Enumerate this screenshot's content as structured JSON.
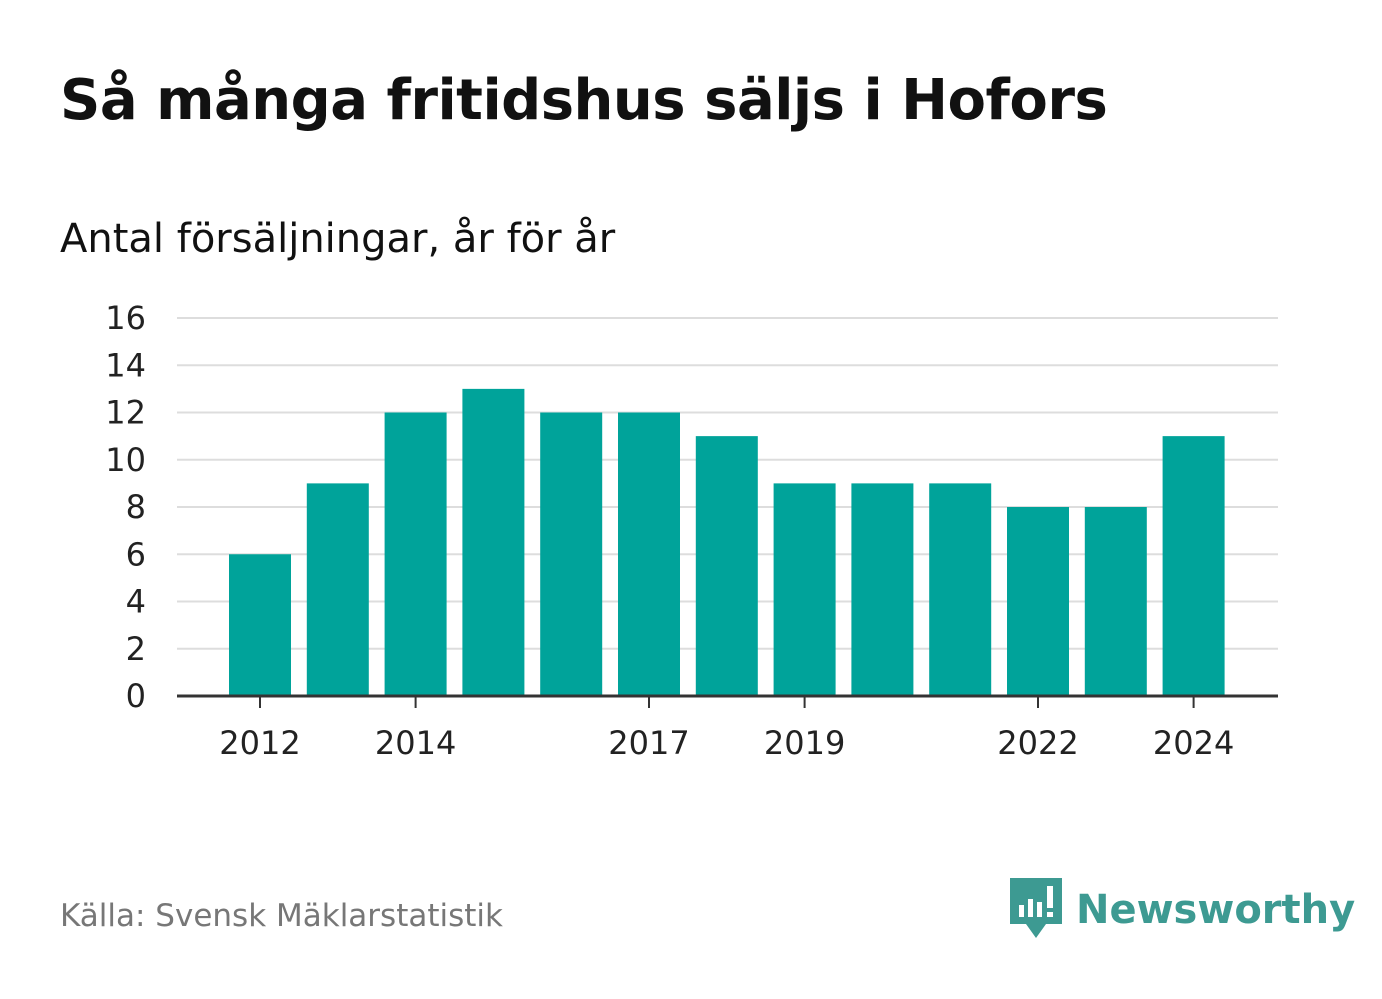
{
  "title": "Så många fritidshus säljs i Hofors",
  "subtitle": "Antal försäljningar, år för år",
  "source": "Källa: Svensk Mäklarstatistik",
  "brand": {
    "name": "Newsworthy",
    "icon": "newsworthy-logo-icon",
    "color": "#3d9a92"
  },
  "colors": {
    "bar": "#00a39a",
    "grid": "#dddddd",
    "axis": "#333333"
  },
  "chart_data": {
    "type": "bar",
    "categories": [
      "2012",
      "2013",
      "2014",
      "2015",
      "2016",
      "2017",
      "2018",
      "2019",
      "2020",
      "2021",
      "2022",
      "2023",
      "2024"
    ],
    "values": [
      6,
      9,
      12,
      13,
      12,
      12,
      11,
      9,
      9,
      9,
      8,
      8,
      11
    ],
    "x_tick_labels": [
      "2012",
      "2014",
      "2017",
      "2019",
      "2022",
      "2024"
    ],
    "y_ticks": [
      0,
      2,
      4,
      6,
      8,
      10,
      12,
      14,
      16
    ],
    "ylim": [
      0,
      16
    ],
    "grid": true,
    "legend": "none"
  }
}
